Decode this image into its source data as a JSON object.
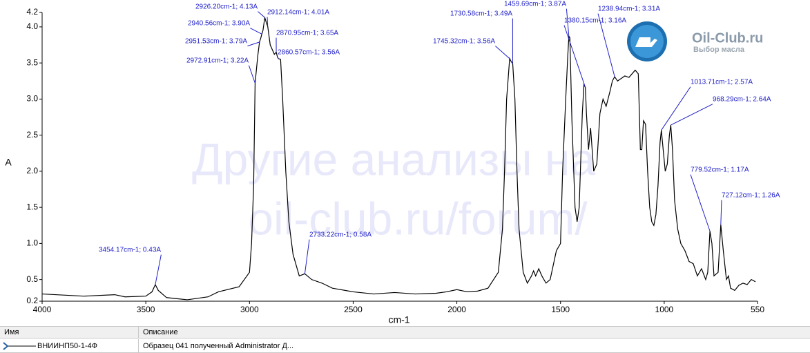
{
  "chart_data": {
    "type": "line",
    "x_label": "cm-1",
    "y_label": "A",
    "xlim": [
      4000,
      550
    ],
    "ylim": [
      0.2,
      4.2
    ],
    "xticks": [
      4000,
      3500,
      3000,
      2500,
      2000,
      1500,
      1000,
      550
    ],
    "yticks": [
      0.2,
      0.5,
      {
        "value": 1,
        "label": "1.0"
      },
      1.5,
      {
        "value": 2,
        "label": "2.0"
      },
      2.5,
      {
        "value": 3,
        "label": "3.0"
      },
      3.5,
      {
        "value": 4,
        "label": "4.0"
      },
      4.2
    ],
    "color": "#000000",
    "annotation_color": "#1f1fc8",
    "x": [
      4000,
      3800,
      3650,
      3600,
      3500,
      3470,
      3454.17,
      3440,
      3400,
      3300,
      3200,
      3150,
      3050,
      3000,
      2990,
      2980,
      2972.91,
      2960,
      2951.53,
      2945,
      2940.56,
      2935,
      2926.2,
      2918,
      2912.14,
      2900,
      2880,
      2870.95,
      2865,
      2860.57,
      2850,
      2840,
      2825,
      2810,
      2790,
      2760,
      2733.22,
      2700,
      2650,
      2600,
      2500,
      2400,
      2300,
      2200,
      2100,
      2050,
      2000,
      1950,
      1900,
      1850,
      1800,
      1780,
      1770,
      1760,
      1745.32,
      1738,
      1730.58,
      1720,
      1710,
      1700,
      1680,
      1660,
      1640,
      1630,
      1620,
      1605,
      1590,
      1570,
      1550,
      1520,
      1500,
      1490,
      1475,
      1465,
      1459.69,
      1455,
      1445,
      1430,
      1420,
      1410,
      1395,
      1387,
      1380.15,
      1375,
      1365,
      1355,
      1340,
      1325,
      1310,
      1295,
      1280,
      1262,
      1250,
      1238.94,
      1225,
      1210,
      1190,
      1170,
      1155,
      1140,
      1125,
      1115,
      1108,
      1100,
      1090,
      1080,
      1070,
      1060,
      1050,
      1040,
      1030,
      1020,
      1013.71,
      1005,
      995,
      985,
      975,
      968.29,
      960,
      950,
      935,
      920,
      900,
      880,
      860,
      840,
      820,
      800,
      790,
      779.52,
      770,
      760,
      740,
      727.12,
      715,
      700,
      690,
      680,
      660,
      640,
      620,
      600,
      580,
      560
    ],
    "values": [
      0.3,
      0.27,
      0.29,
      0.26,
      0.27,
      0.33,
      0.43,
      0.35,
      0.25,
      0.22,
      0.26,
      0.33,
      0.4,
      0.6,
      1.0,
      1.8,
      3.22,
      3.6,
      3.79,
      3.85,
      3.9,
      3.95,
      4.13,
      4.05,
      4.01,
      3.75,
      3.62,
      3.65,
      3.58,
      3.56,
      3.55,
      3.0,
      2.0,
      1.3,
      0.85,
      0.55,
      0.58,
      0.5,
      0.45,
      0.38,
      0.33,
      0.3,
      0.32,
      0.3,
      0.31,
      0.33,
      0.36,
      0.33,
      0.34,
      0.38,
      0.6,
      1.2,
      2.0,
      3.0,
      3.56,
      3.52,
      3.49,
      3.0,
      2.0,
      1.2,
      0.6,
      0.45,
      0.55,
      0.62,
      0.55,
      0.65,
      0.55,
      0.45,
      0.5,
      0.9,
      1.0,
      2.0,
      3.0,
      3.6,
      3.87,
      3.85,
      2.7,
      1.5,
      1.3,
      1.5,
      2.8,
      3.2,
      3.16,
      2.8,
      2.3,
      2.6,
      2.0,
      2.1,
      2.8,
      3.0,
      2.9,
      3.1,
      3.25,
      3.31,
      3.25,
      3.28,
      3.32,
      3.3,
      3.35,
      3.4,
      3.35,
      2.3,
      2.3,
      2.7,
      2.65,
      2.0,
      1.5,
      1.3,
      1.25,
      1.4,
      1.8,
      2.4,
      2.57,
      2.3,
      2.0,
      2.1,
      2.5,
      2.64,
      2.3,
      1.6,
      1.2,
      1.0,
      0.9,
      0.75,
      0.72,
      0.55,
      0.65,
      0.5,
      0.6,
      1.17,
      1.0,
      0.55,
      0.6,
      1.26,
      0.9,
      0.5,
      0.55,
      0.38,
      0.35,
      0.42,
      0.45,
      0.43,
      0.5,
      0.47
    ],
    "annotations": [
      {
        "label": "3454.17cm-1; 0.43A",
        "x": 3454.17,
        "y": 0.43
      },
      {
        "label": "2972.91cm-1; 3.22A",
        "x": 2972.91,
        "y": 3.22
      },
      {
        "label": "2951.53cm-1; 3.79A",
        "x": 2951.53,
        "y": 3.79
      },
      {
        "label": "2940.56cm-1; 3.90A",
        "x": 2940.56,
        "y": 3.9
      },
      {
        "label": "2926.20cm-1; 4.13A",
        "x": 2926.2,
        "y": 4.13
      },
      {
        "label": "2912.14cm-1; 4.01A",
        "x": 2912.14,
        "y": 4.01
      },
      {
        "label": "2870.95cm-1; 3.65A",
        "x": 2870.95,
        "y": 3.65
      },
      {
        "label": "2860.57cm-1; 3.56A",
        "x": 2860.57,
        "y": 3.56
      },
      {
        "label": "2733.22cm-1; 0.58A",
        "x": 2733.22,
        "y": 0.58
      },
      {
        "label": "1745.32cm-1; 3.56A",
        "x": 1745.32,
        "y": 3.56
      },
      {
        "label": "1730.58cm-1; 3.49A",
        "x": 1730.58,
        "y": 3.49
      },
      {
        "label": "1459.69cm-1; 3.87A",
        "x": 1459.69,
        "y": 3.87
      },
      {
        "label": "1380.15cm-1; 3.16A",
        "x": 1380.15,
        "y": 3.16
      },
      {
        "label": "1238.94cm-1; 3.31A",
        "x": 1238.94,
        "y": 3.31
      },
      {
        "label": "1013.71cm-1; 2.57A",
        "x": 1013.71,
        "y": 2.57
      },
      {
        "label": "968.29cm-1; 2.64A",
        "x": 968.29,
        "y": 2.64
      },
      {
        "label": "779.52cm-1; 1.17A",
        "x": 779.52,
        "y": 1.17
      },
      {
        "label": "727.12cm-1; 1.26A",
        "x": 727.12,
        "y": 1.26
      }
    ]
  },
  "watermark": [
    "Другие анализы на",
    "oil-club.ru/forum/"
  ],
  "logo": {
    "name": "Oil-Club.ru",
    "tagline": "Выбор масла"
  },
  "table": {
    "headers": [
      "Имя",
      "Описание"
    ],
    "rows": [
      [
        "ВНИИНП50-1-4Ф",
        "Образец 041 полученный Administrator Д..."
      ]
    ]
  }
}
